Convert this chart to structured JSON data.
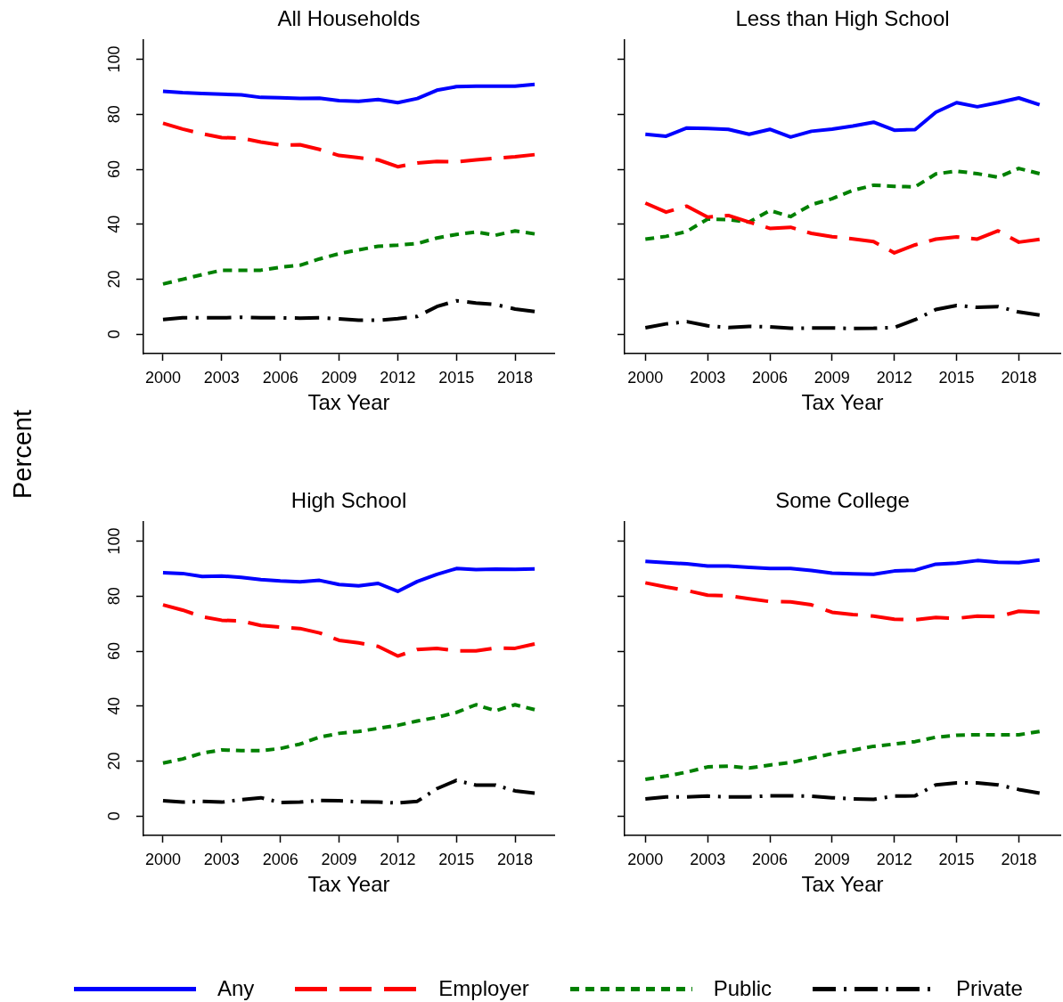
{
  "chart_data": [
    {
      "type": "line",
      "title": "All Households",
      "xlabel": "Tax Year",
      "ylabel": "Percent",
      "x": [
        2000,
        2001,
        2002,
        2003,
        2004,
        2005,
        2006,
        2007,
        2008,
        2009,
        2010,
        2011,
        2012,
        2013,
        2014,
        2015,
        2016,
        2017,
        2018,
        2019
      ],
      "xlim": [
        1999,
        2020
      ],
      "xticks": [
        2000,
        2003,
        2006,
        2009,
        2012,
        2015,
        2018
      ],
      "ylim": [
        -7,
        107
      ],
      "yticks": [
        0,
        20,
        40,
        60,
        80,
        100
      ],
      "grid": false,
      "legend": "bottom",
      "series": [
        {
          "name": "Any",
          "color": "#0000ff",
          "line_style": "solid",
          "values": [
            88.3,
            87.8,
            87.5,
            87.3,
            87.0,
            86.1,
            86.0,
            85.7,
            85.8,
            84.9,
            84.7,
            85.3,
            84.2,
            85.7,
            88.7,
            90.0,
            90.2,
            90.2,
            90.2,
            90.8
          ]
        },
        {
          "name": "Employer",
          "color": "#ff0000",
          "line_style": "dashed",
          "values": [
            76.7,
            74.6,
            72.9,
            71.5,
            71.3,
            69.9,
            68.8,
            68.9,
            67.2,
            65.0,
            64.2,
            63.4,
            60.9,
            62.3,
            62.8,
            62.7,
            63.4,
            64.0,
            64.5,
            65.3
          ]
        },
        {
          "name": "Public",
          "color": "#008000",
          "line_style": "dotted",
          "values": [
            18.3,
            20.0,
            21.7,
            23.3,
            23.3,
            23.3,
            24.4,
            25.1,
            27.4,
            29.3,
            30.7,
            32.0,
            32.4,
            33.0,
            35.0,
            36.3,
            37.2,
            36.0,
            37.6,
            36.5
          ]
        },
        {
          "name": "Private",
          "color": "#000000",
          "line_style": "dashdot",
          "values": [
            5.4,
            6.0,
            6.0,
            6.0,
            6.2,
            6.0,
            6.0,
            5.9,
            6.0,
            5.6,
            5.1,
            5.1,
            5.7,
            6.5,
            10.1,
            12.2,
            11.4,
            10.8,
            9.2,
            8.3
          ]
        }
      ]
    },
    {
      "type": "line",
      "title": "Less than High School",
      "xlabel": "Tax Year",
      "x": [
        2000,
        2001,
        2002,
        2003,
        2004,
        2005,
        2006,
        2007,
        2008,
        2009,
        2010,
        2011,
        2012,
        2013,
        2014,
        2015,
        2016,
        2017,
        2018,
        2019
      ],
      "xlim": [
        1999,
        2020
      ],
      "xticks": [
        2000,
        2003,
        2006,
        2009,
        2012,
        2015,
        2018
      ],
      "ylim": [
        -7,
        107
      ],
      "yticks": [
        0,
        20,
        40,
        60,
        80,
        100
      ],
      "grid": false,
      "tick_labels": "x",
      "series": [
        {
          "color": "#0000ff",
          "line_style": "solid",
          "values": [
            72.7,
            72.0,
            75.0,
            74.8,
            74.5,
            72.7,
            74.5,
            71.7,
            73.8,
            74.6,
            75.7,
            77.1,
            74.2,
            74.4,
            80.7,
            84.2,
            82.7,
            84.2,
            85.9,
            83.4
          ]
        },
        {
          "color": "#ff0000",
          "line_style": "dashed",
          "values": [
            47.7,
            44.4,
            46.6,
            42.6,
            43.2,
            40.8,
            38.5,
            38.9,
            36.7,
            35.5,
            34.7,
            33.7,
            29.6,
            32.5,
            34.6,
            35.4,
            34.6,
            37.6,
            33.5,
            34.5
          ]
        },
        {
          "color": "#008000",
          "line_style": "dotted",
          "values": [
            34.6,
            35.6,
            37.4,
            41.9,
            41.7,
            40.8,
            45.0,
            42.8,
            47.1,
            49.3,
            52.3,
            54.2,
            53.8,
            53.6,
            58.3,
            59.3,
            58.4,
            57.1,
            60.3,
            58.4
          ]
        },
        {
          "color": "#000000",
          "line_style": "dashdot",
          "values": [
            2.4,
            3.8,
            4.6,
            3.1,
            2.5,
            2.9,
            2.7,
            2.2,
            2.3,
            2.3,
            2.1,
            2.2,
            2.5,
            5.3,
            9.0,
            10.5,
            9.8,
            10.1,
            8.1,
            7.0
          ]
        }
      ]
    },
    {
      "type": "line",
      "title": "High School",
      "xlabel": "Tax Year",
      "x": [
        2000,
        2001,
        2002,
        2003,
        2004,
        2005,
        2006,
        2007,
        2008,
        2009,
        2010,
        2011,
        2012,
        2013,
        2014,
        2015,
        2016,
        2017,
        2018,
        2019
      ],
      "xlim": [
        1999,
        2020
      ],
      "xticks": [
        2000,
        2003,
        2006,
        2009,
        2012,
        2015,
        2018
      ],
      "ylim": [
        -7,
        107
      ],
      "yticks": [
        0,
        20,
        40,
        60,
        80,
        100
      ],
      "grid": false,
      "series": [
        {
          "color": "#0000ff",
          "line_style": "solid",
          "values": [
            88.5,
            88.2,
            87.1,
            87.3,
            86.8,
            86.0,
            85.5,
            85.2,
            85.7,
            84.2,
            83.7,
            84.6,
            81.7,
            85.3,
            87.9,
            90.0,
            89.6,
            89.8,
            89.7,
            89.9
          ]
        },
        {
          "color": "#ff0000",
          "line_style": "dashed",
          "values": [
            76.8,
            74.9,
            72.5,
            71.2,
            70.9,
            69.3,
            68.7,
            68.2,
            66.6,
            63.9,
            63.0,
            61.7,
            58.2,
            60.6,
            61.0,
            60.1,
            60.1,
            61.1,
            61.0,
            62.6
          ]
        },
        {
          "color": "#008000",
          "line_style": "dotted",
          "values": [
            19.3,
            20.8,
            22.9,
            24.1,
            23.8,
            23.8,
            24.6,
            26.2,
            28.7,
            30.1,
            30.8,
            31.9,
            33.0,
            34.6,
            35.9,
            37.7,
            40.5,
            38.3,
            40.5,
            38.7
          ]
        },
        {
          "color": "#000000",
          "line_style": "dashdot",
          "values": [
            5.6,
            5.1,
            5.4,
            5.1,
            6.0,
            6.7,
            5.0,
            5.1,
            5.7,
            5.6,
            5.2,
            5.1,
            4.8,
            5.4,
            10.0,
            13.0,
            11.3,
            11.3,
            9.2,
            8.4
          ]
        }
      ]
    },
    {
      "type": "line",
      "title": "Some College",
      "xlabel": "Tax Year",
      "x": [
        2000,
        2001,
        2002,
        2003,
        2004,
        2005,
        2006,
        2007,
        2008,
        2009,
        2010,
        2011,
        2012,
        2013,
        2014,
        2015,
        2016,
        2017,
        2018,
        2019
      ],
      "xlim": [
        1999,
        2020
      ],
      "xticks": [
        2000,
        2003,
        2006,
        2009,
        2012,
        2015,
        2018
      ],
      "ylim": [
        -7,
        107
      ],
      "yticks": [
        0,
        20,
        40,
        60,
        80,
        100
      ],
      "grid": false,
      "tick_labels": "x",
      "series": [
        {
          "color": "#0000ff",
          "line_style": "solid",
          "values": [
            92.6,
            92.1,
            91.7,
            90.9,
            90.9,
            90.4,
            90.0,
            90.0,
            89.3,
            88.3,
            88.1,
            87.9,
            89.1,
            89.4,
            91.6,
            92.0,
            92.9,
            92.3,
            92.1,
            93.1
          ]
        },
        {
          "color": "#ff0000",
          "line_style": "dashed",
          "values": [
            84.8,
            83.3,
            82.0,
            80.3,
            80.1,
            79.0,
            78.0,
            77.9,
            76.8,
            74.1,
            73.3,
            72.7,
            71.6,
            71.4,
            72.2,
            71.9,
            72.7,
            72.5,
            74.5,
            74.1
          ]
        },
        {
          "color": "#008000",
          "line_style": "dotted",
          "values": [
            13.4,
            14.6,
            16.0,
            17.9,
            18.2,
            17.5,
            18.6,
            19.5,
            21.1,
            22.7,
            24.0,
            25.4,
            26.2,
            27.1,
            28.7,
            29.4,
            29.6,
            29.6,
            29.6,
            30.8
          ]
        },
        {
          "color": "#000000",
          "line_style": "dashdot",
          "values": [
            6.3,
            7.0,
            7.0,
            7.3,
            7.0,
            7.0,
            7.4,
            7.4,
            7.3,
            6.7,
            6.3,
            6.1,
            7.3,
            7.4,
            11.4,
            12.1,
            12.1,
            11.4,
            9.7,
            8.4
          ]
        }
      ]
    }
  ]
}
